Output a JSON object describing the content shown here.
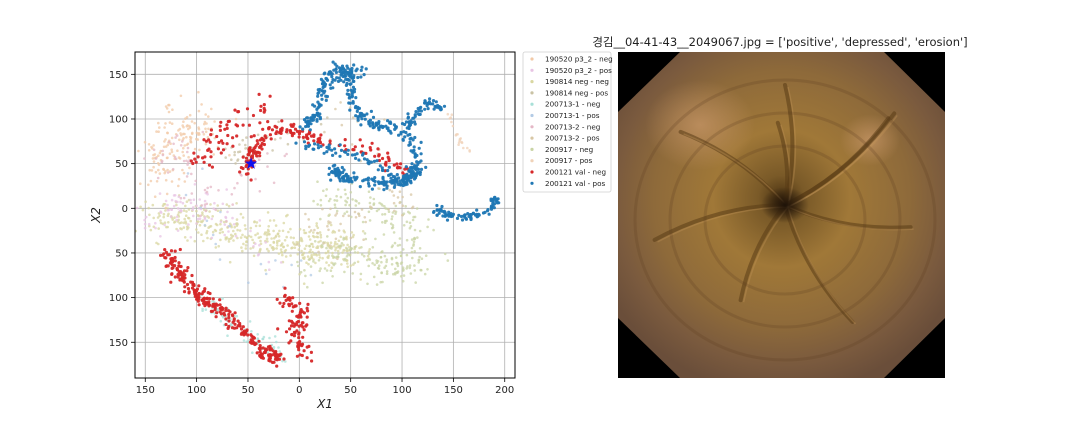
{
  "chart_data": {
    "type": "scatter",
    "xlabel": "X1",
    "ylabel": "X2",
    "xlim": [
      160,
      -210
    ],
    "ylim": [
      175,
      -190
    ],
    "x_ticks": [
      "150",
      "100",
      "50",
      "0",
      "50",
      "100",
      "150",
      "200"
    ],
    "x_tick_values": [
      150,
      100,
      50,
      0,
      -50,
      -100,
      -150,
      -200
    ],
    "y_ticks": [
      "150",
      "100",
      "50",
      "0",
      "50",
      "100",
      "150"
    ],
    "y_tick_values": [
      -150,
      -100,
      -50,
      0,
      50,
      100,
      150
    ],
    "grid": true,
    "legend_position": "outside-right",
    "series": [
      {
        "name": "190520 p3_2 - neg",
        "color": "#f2c9a7",
        "faint": true
      },
      {
        "name": "190520 p3_2 - pos",
        "color": "#e8c4e4",
        "faint": true
      },
      {
        "name": "190814 neg - neg",
        "color": "#d9d7a1",
        "faint": true
      },
      {
        "name": "190814 neg - pos",
        "color": "#c9c2a4",
        "faint": true
      },
      {
        "name": "200713-1 - neg",
        "color": "#a8e0d8",
        "faint": true
      },
      {
        "name": "200713-1 - pos",
        "color": "#b3cbe5",
        "faint": true
      },
      {
        "name": "200713-2 - neg",
        "color": "#e4b7c6",
        "faint": true
      },
      {
        "name": "200713-2 - pos",
        "color": "#d8c7a5",
        "faint": true
      },
      {
        "name": "200917 - neg",
        "color": "#c9d4a5",
        "faint": true
      },
      {
        "name": "200917 - pos",
        "color": "#f0d2b8",
        "faint": true
      },
      {
        "name": "200121 val - neg",
        "color": "#d62728",
        "faint": false
      },
      {
        "name": "200121 val - pos",
        "color": "#1f77b4",
        "faint": false
      }
    ],
    "highlight": {
      "x": 47,
      "y": 50,
      "color": "#1111ee",
      "marker": "star"
    },
    "clusters": [
      {
        "series": 10,
        "n": 260,
        "spread": 4,
        "path": [
          [
            130,
            -50
          ],
          [
            115,
            -75
          ],
          [
            90,
            -105
          ],
          [
            60,
            -130
          ],
          [
            35,
            -160
          ],
          [
            20,
            -168
          ]
        ]
      },
      {
        "series": 10,
        "n": 90,
        "spread": 5,
        "path": [
          [
            -5,
            -165
          ],
          [
            5,
            -140
          ],
          [
            -5,
            -115
          ],
          [
            20,
            -100
          ]
        ]
      },
      {
        "series": 10,
        "n": 170,
        "spread": 4,
        "path": [
          [
            52,
            40
          ],
          [
            48,
            58
          ],
          [
            40,
            75
          ],
          [
            20,
            90
          ],
          [
            0,
            85
          ],
          [
            -20,
            75
          ],
          [
            -60,
            70
          ],
          [
            -85,
            55
          ],
          [
            -110,
            38
          ]
        ]
      },
      {
        "series": 10,
        "n": 60,
        "spread": 8,
        "path": [
          [
            100,
            50
          ],
          [
            70,
            90
          ],
          [
            35,
            112
          ]
        ]
      },
      {
        "series": 11,
        "n": 320,
        "spread": 3,
        "path": [
          [
            0,
            70
          ],
          [
            -30,
            65
          ],
          [
            -60,
            60
          ],
          [
            -85,
            40
          ],
          [
            -105,
            28
          ],
          [
            -118,
            45
          ],
          [
            -110,
            75
          ],
          [
            -90,
            90
          ],
          [
            -70,
            95
          ],
          [
            -55,
            110
          ],
          [
            -50,
            130
          ],
          [
            -48,
            150
          ],
          [
            -40,
            160
          ],
          [
            -25,
            145
          ],
          [
            -20,
            120
          ],
          [
            -15,
            100
          ],
          [
            -5,
            90
          ]
        ]
      },
      {
        "series": 11,
        "n": 170,
        "spread": 3,
        "path": [
          [
            -30,
            45
          ],
          [
            -45,
            33
          ],
          [
            -80,
            28
          ],
          [
            -105,
            30
          ],
          [
            -112,
            48
          ]
        ]
      },
      {
        "series": 11,
        "n": 90,
        "spread": 2.5,
        "path": [
          [
            -132,
            0
          ],
          [
            -145,
            -8
          ],
          [
            -165,
            -10
          ],
          [
            -183,
            -5
          ],
          [
            -192,
            10
          ]
        ]
      },
      {
        "series": 11,
        "n": 60,
        "spread": 2.5,
        "path": [
          [
            -105,
            90
          ],
          [
            -115,
            110
          ],
          [
            -130,
            118
          ],
          [
            -142,
            110
          ]
        ]
      },
      {
        "series": 11,
        "n": 40,
        "spread": 4,
        "path": [
          [
            -30,
            140
          ],
          [
            -45,
            155
          ],
          [
            -60,
            150
          ]
        ]
      },
      {
        "series": 9,
        "n": 20,
        "spread": 2,
        "path": [
          [
            -145,
            110
          ],
          [
            -155,
            80
          ],
          [
            -163,
            62
          ]
        ]
      },
      {
        "series": 2,
        "n": 420,
        "spread": 12,
        "path": [
          [
            140,
            -10
          ],
          [
            100,
            -20
          ],
          [
            60,
            -25
          ],
          [
            20,
            -35
          ],
          [
            -20,
            -45
          ],
          [
            -50,
            -45
          ]
        ]
      },
      {
        "series": 8,
        "n": 260,
        "spread": 11,
        "path": [
          [
            -10,
            -60
          ],
          [
            -45,
            -55
          ],
          [
            -80,
            -65
          ],
          [
            -110,
            -65
          ],
          [
            -110,
            -20
          ],
          [
            -60,
            0
          ],
          [
            -20,
            15
          ]
        ]
      },
      {
        "series": 0,
        "n": 160,
        "spread": 14,
        "path": [
          [
            150,
            40
          ],
          [
            120,
            60
          ],
          [
            110,
            95
          ],
          [
            90,
            85
          ]
        ]
      },
      {
        "series": 1,
        "n": 90,
        "spread": 13,
        "path": [
          [
            145,
            -20
          ],
          [
            120,
            -5
          ],
          [
            95,
            5
          ],
          [
            20,
            -60
          ]
        ]
      },
      {
        "series": 4,
        "n": 70,
        "spread": 6,
        "path": [
          [
            95,
            -100
          ],
          [
            70,
            -125
          ],
          [
            40,
            -150
          ],
          [
            10,
            -165
          ]
        ]
      },
      {
        "series": 6,
        "n": 60,
        "spread": 10,
        "path": [
          [
            150,
            30
          ],
          [
            120,
            70
          ],
          [
            90,
            -10
          ],
          [
            10,
            70
          ]
        ]
      },
      {
        "series": 7,
        "n": 70,
        "spread": 11,
        "path": [
          [
            -10,
            -20
          ],
          [
            -50,
            -20
          ],
          [
            -100,
            10
          ],
          [
            -30,
            120
          ]
        ]
      },
      {
        "series": 3,
        "n": 40,
        "spread": 9,
        "path": [
          [
            70,
            60
          ],
          [
            30,
            80
          ],
          [
            -30,
            100
          ]
        ]
      },
      {
        "series": 5,
        "n": 20,
        "spread": 10,
        "path": [
          [
            120,
            40
          ],
          [
            60,
            -60
          ],
          [
            -20,
            -80
          ]
        ]
      }
    ]
  },
  "image_panel": {
    "title": "경김__04-41-43__2049067.jpg = ['positive', 'depressed', 'erosion']",
    "frame_color": "#000000"
  }
}
